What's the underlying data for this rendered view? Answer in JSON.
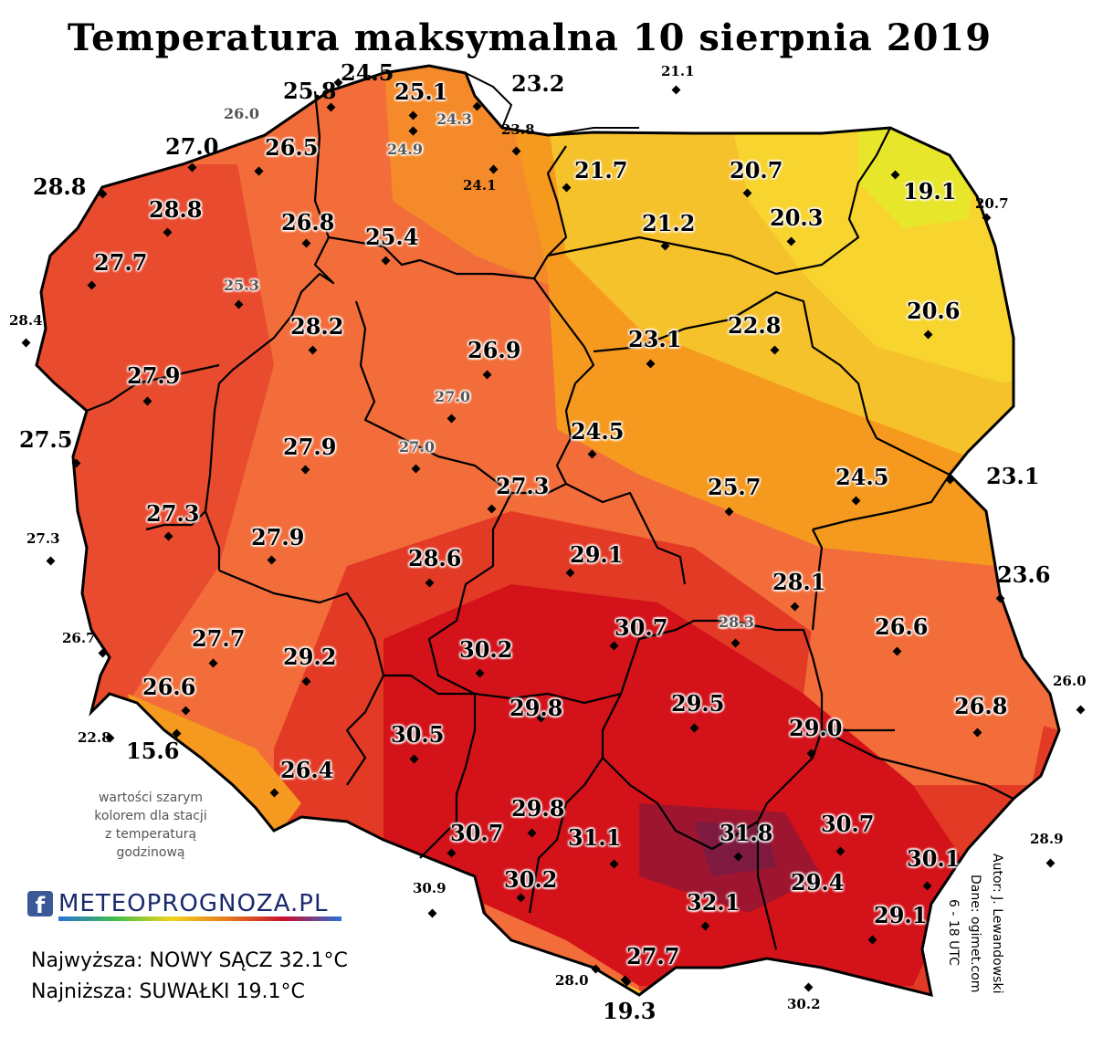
{
  "title": "Temperatura maksymalna 10 sierpnia 2019",
  "legend_colors": {
    "coolest": "#e8e62a",
    "cool": "#f6c22c",
    "mild": "#f59a1e",
    "warm": "#f26d3a",
    "hot": "#e33a26",
    "hotter": "#d3121a",
    "hottest": "#7e1a40"
  },
  "stations": [
    {
      "value": "25.8",
      "style": "bold"
    },
    {
      "value": "24.5",
      "style": "bold"
    },
    {
      "value": "25.1",
      "style": "halo"
    },
    {
      "value": "23.2",
      "style": "bold"
    },
    {
      "value": "21.1",
      "style": "small"
    },
    {
      "value": "26.0",
      "style": "gray"
    },
    {
      "value": "24.3",
      "style": "gray"
    },
    {
      "value": "23.8",
      "style": "small"
    },
    {
      "value": "27.0",
      "style": "bold"
    },
    {
      "value": "26.5",
      "style": "halo"
    },
    {
      "value": "24.9",
      "style": "gray"
    },
    {
      "value": "21.7",
      "style": "halo"
    },
    {
      "value": "20.7",
      "style": "halo"
    },
    {
      "value": "28.8",
      "style": "bold"
    },
    {
      "value": "24.1",
      "style": "small"
    },
    {
      "value": "19.1",
      "style": "halo"
    },
    {
      "value": "20.7",
      "style": "small"
    },
    {
      "value": "28.8",
      "style": "halo"
    },
    {
      "value": "26.8",
      "style": "halo"
    },
    {
      "value": "21.2",
      "style": "halo"
    },
    {
      "value": "20.3",
      "style": "halo"
    },
    {
      "value": "25.4",
      "style": "halo"
    },
    {
      "value": "27.7",
      "style": "halo"
    },
    {
      "value": "25.3",
      "style": "gray"
    },
    {
      "value": "20.6",
      "style": "halo"
    },
    {
      "value": "28.4",
      "style": "small"
    },
    {
      "value": "28.2",
      "style": "halo"
    },
    {
      "value": "23.1",
      "style": "halo"
    },
    {
      "value": "22.8",
      "style": "halo"
    },
    {
      "value": "26.9",
      "style": "halo"
    },
    {
      "value": "27.9",
      "style": "halo"
    },
    {
      "value": "27.0",
      "style": "gray"
    },
    {
      "value": "27.5",
      "style": "bold"
    },
    {
      "value": "24.5",
      "style": "halo"
    },
    {
      "value": "27.9",
      "style": "halo"
    },
    {
      "value": "27.0",
      "style": "gray"
    },
    {
      "value": "23.1",
      "style": "bold"
    },
    {
      "value": "24.5",
      "style": "halo"
    },
    {
      "value": "27.3",
      "style": "halo"
    },
    {
      "value": "25.7",
      "style": "halo"
    },
    {
      "value": "27.3",
      "style": "halo"
    },
    {
      "value": "27.3",
      "style": "small"
    },
    {
      "value": "27.9",
      "style": "halo"
    },
    {
      "value": "29.1",
      "style": "halo"
    },
    {
      "value": "28.6",
      "style": "halo"
    },
    {
      "value": "23.6",
      "style": "bold"
    },
    {
      "value": "28.1",
      "style": "halo"
    },
    {
      "value": "26.7",
      "style": "small"
    },
    {
      "value": "27.7",
      "style": "halo"
    },
    {
      "value": "30.7",
      "style": "halo"
    },
    {
      "value": "28.3",
      "style": "gray"
    },
    {
      "value": "26.6",
      "style": "halo"
    },
    {
      "value": "30.2",
      "style": "halo"
    },
    {
      "value": "29.2",
      "style": "halo"
    },
    {
      "value": "26.6",
      "style": "halo"
    },
    {
      "value": "29.8",
      "style": "halo"
    },
    {
      "value": "29.5",
      "style": "halo"
    },
    {
      "value": "26.0",
      "style": "small"
    },
    {
      "value": "26.8",
      "style": "halo"
    },
    {
      "value": "22.8",
      "style": "small"
    },
    {
      "value": "15.6",
      "style": "bold"
    },
    {
      "value": "30.5",
      "style": "halo"
    },
    {
      "value": "29.0",
      "style": "halo"
    },
    {
      "value": "26.4",
      "style": "halo"
    },
    {
      "value": "29.8",
      "style": "halo"
    },
    {
      "value": "30.7",
      "style": "halo"
    },
    {
      "value": "31.1",
      "style": "halo"
    },
    {
      "value": "31.8",
      "style": "halo"
    },
    {
      "value": "30.7",
      "style": "halo"
    },
    {
      "value": "28.9",
      "style": "small"
    },
    {
      "value": "30.1",
      "style": "halo"
    },
    {
      "value": "30.2",
      "style": "halo"
    },
    {
      "value": "29.4",
      "style": "halo"
    },
    {
      "value": "30.9",
      "style": "small"
    },
    {
      "value": "32.1",
      "style": "halo"
    },
    {
      "value": "29.1",
      "style": "halo"
    },
    {
      "value": "27.7",
      "style": "halo"
    },
    {
      "value": "28.0",
      "style": "small"
    },
    {
      "value": "19.3",
      "style": "bold"
    },
    {
      "value": "30.2",
      "style": "small"
    }
  ],
  "note": [
    "wartości szarym",
    "kolorem dla stacji",
    "z temperaturą",
    "godzinową"
  ],
  "logo": {
    "fb": "f",
    "text": "METEOPROGNOZA.PL"
  },
  "highest": "Najwyższa: NOWY SĄCZ 32.1°C",
  "lowest": "Najniższa: SUWAŁKI 19.1°C",
  "author": "Autor: J. Lewandowski",
  "source": "Dane: ogimet.com",
  "hours": "6 - 18 UTC"
}
